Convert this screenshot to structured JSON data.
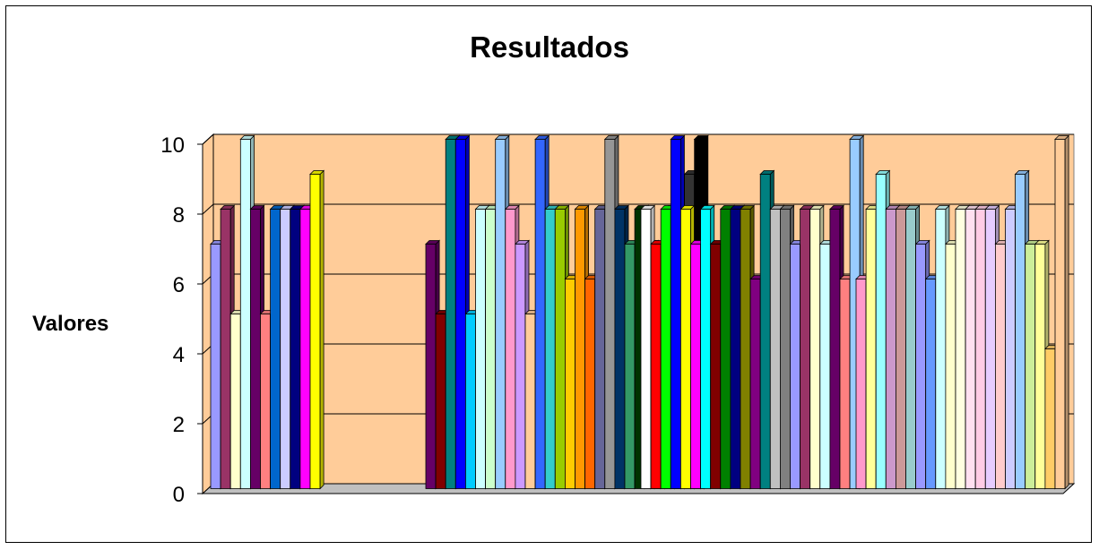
{
  "chart_data": {
    "type": "bar",
    "title": "Resultados",
    "xlabel": "",
    "ylabel": "Valores",
    "ylim": [
      0,
      10
    ],
    "yticks": [
      0,
      2,
      4,
      6,
      8,
      10
    ],
    "grid": true,
    "legend": "none",
    "style": "3d",
    "groups": [
      {
        "values": [
          7,
          8,
          5,
          10,
          8,
          5,
          8,
          8,
          8,
          8,
          9
        ],
        "colors": [
          "#9999FF",
          "#993366",
          "#FFFFCC",
          "#CCFFFF",
          "#660066",
          "#FF8080",
          "#0066CC",
          "#CCCCFF",
          "#000080",
          "#FF00FF",
          "#FFFF00"
        ]
      },
      {
        "values": [
          7,
          5,
          10,
          10,
          5,
          8,
          8,
          10,
          8,
          7,
          5,
          10,
          8,
          8,
          6,
          8,
          6,
          8,
          10,
          8,
          7,
          8,
          7,
          6,
          8,
          6,
          9,
          10
        ],
        "colors": [
          "#660066",
          "#800000",
          "#008080",
          "#0000FF",
          "#00CCFF",
          "#CCFFFF",
          "#CCFFCC",
          "#99CCFF",
          "#FF99CC",
          "#CC99FF",
          "#FFCC99",
          "#3366FF",
          "#33CCCC",
          "#99CC00",
          "#FFCC00",
          "#FF9900",
          "#FF6600",
          "#666699",
          "#969696",
          "#003366",
          "#339966",
          "#003300",
          "#333300",
          "#993300",
          "#993366",
          "#333399",
          "#333333",
          "#000000"
        ]
      },
      {
        "values": [
          8,
          7,
          8,
          10,
          8,
          7,
          8,
          7,
          8,
          8,
          8,
          6,
          9,
          8,
          8,
          7,
          8,
          8,
          7,
          8,
          6,
          10
        ],
        "colors": [
          "#FFFFFF",
          "#FF0000",
          "#00FF00",
          "#0000FF",
          "#FFFF00",
          "#FF00FF",
          "#00FFFF",
          "#800000",
          "#008000",
          "#000080",
          "#808000",
          "#800080",
          "#008080",
          "#C0C0C0",
          "#808080",
          "#9999FF",
          "#993366",
          "#FFFFCC",
          "#CCFFFF",
          "#660066",
          "#FF8080",
          "#99CCFF"
        ]
      },
      {
        "values": [
          6,
          8,
          9,
          8,
          8,
          8,
          7,
          6,
          8,
          7,
          8,
          8,
          8,
          8,
          7,
          8,
          9,
          7,
          7,
          4,
          10
        ],
        "colors": [
          "#FF99CC",
          "#FFFF99",
          "#99FFFF",
          "#CC99CC",
          "#CC9999",
          "#99CCCC",
          "#9999FF",
          "#6699FF",
          "#CCFFFF",
          "#FFFFCC",
          "#FFFFE0",
          "#FFE0F0",
          "#FFCCE5",
          "#E6CCFF",
          "#FFCCCC",
          "#CCCCFF",
          "#99CCFF",
          "#CCEE99",
          "#FFFF99",
          "#FFCC66",
          "#FFCC99"
        ]
      }
    ]
  }
}
